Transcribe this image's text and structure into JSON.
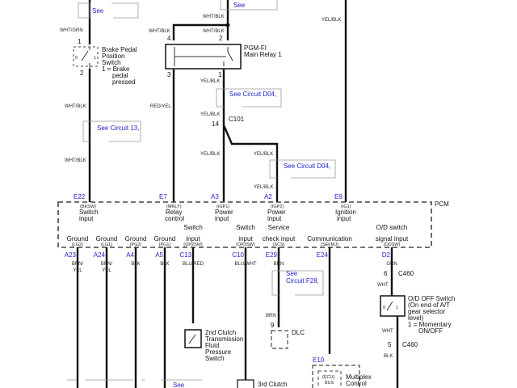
{
  "top": {
    "see1": "See",
    "see2": "See",
    "wire_wht_grn": "WHT/GRN",
    "wire_wht_blk_top": "WHT/BLK",
    "wire_wht_blk_4": "WHT/BLK",
    "wire_wht_blk_2": "WHT/BLK",
    "wire_yel_blk_e9": "YEL/BLK"
  },
  "brake_switch": {
    "pin1": "1",
    "pin2": "2",
    "pos0": "0",
    "pos1": "1",
    "name": [
      "Brake Pedal",
      "Position",
      "Switch",
      "1 = Brake",
      "pedal",
      "pressed"
    ]
  },
  "relay": {
    "pin4": "4",
    "pin2": "2",
    "pin3": "3",
    "pin1": "1",
    "name": [
      "PGM-FI",
      "Main Relay 1"
    ]
  },
  "wires": {
    "wht_blk_a": "WHT/BLK",
    "wht_blk_b": "WHT/BLK",
    "red_yel": "RED/YEL",
    "yel_blk_a": "YEL/BLK",
    "yel_blk_b": "YEL/BLK",
    "yel_blk_c": "YEL/BLK",
    "yel_blk_d": "YEL/BLK",
    "yel_blk_e": "YEL/BLK"
  },
  "refs": {
    "d04_a": "See Circuit D04,",
    "circuit13": "See Circuit 13,",
    "d04_b": "See Circuit D04,",
    "f28": [
      "See",
      "Circuit F28,"
    ],
    "see_bottom": "See"
  },
  "c101": {
    "name": "C101",
    "pin": "14"
  },
  "pcm": {
    "label": "PCM",
    "top_pins": [
      {
        "pin": "E22",
        "code": "(BKSW)",
        "l1": "Switch",
        "l2": "input"
      },
      {
        "pin": "E7",
        "code": "(MRLY)",
        "l1": "Relay",
        "l2": "control"
      },
      {
        "pin": "A3",
        "code": "(IGP1)",
        "l1": "Power",
        "l2": "input"
      },
      {
        "pin": "A2",
        "code": "(IGP2)",
        "l1": "Power",
        "l2": "input"
      },
      {
        "pin": "E9",
        "code": "(IG1)",
        "l1": "Ignition",
        "l2": "input"
      }
    ],
    "bottom_pins": [
      {
        "pin": "A23",
        "l1": "",
        "l2": "Ground",
        "code": "(LG2)",
        "wire": [
          "BRN/",
          "YEL"
        ]
      },
      {
        "pin": "A24",
        "l1": "",
        "l2": "Ground",
        "code": "(LG1)",
        "wire": [
          "BRN/",
          "YEL"
        ]
      },
      {
        "pin": "A4",
        "l1": "",
        "l2": "Ground",
        "code": "(PG2)",
        "wire": [
          "BLK",
          ""
        ]
      },
      {
        "pin": "A5",
        "l1": "",
        "l2": "Ground",
        "code": "(PG1)",
        "wire": [
          "BLK",
          ""
        ]
      },
      {
        "pin": "C13",
        "l1": "Switch",
        "l2": "input",
        "code": "(OP2SW)",
        "wire": [
          "BLU/RED",
          ""
        ]
      },
      {
        "pin": "C10",
        "l1": "Switch",
        "l2": "input",
        "code": "(OP3SW)",
        "wire": [
          "BLU/WHT",
          ""
        ]
      },
      {
        "pin": "E29",
        "l1": "Service",
        "l2": "check input",
        "code": "(SCS)",
        "wire": [
          "BRN",
          ""
        ]
      },
      {
        "pin": "E24",
        "l1": "",
        "l2": "Communication",
        "code": "(SEFMJ)",
        "wire": [
          "",
          ""
        ]
      },
      {
        "pin": "D2",
        "l1": "O/D switch",
        "l2": "signal input",
        "code": "(ODSW)",
        "wire": [
          "GRN",
          ""
        ]
      }
    ]
  },
  "clutch2": {
    "name": [
      "2nd Clutch",
      "Transmission",
      "Fluid",
      "Pressure",
      "Switch"
    ]
  },
  "clutch3": {
    "name": "3rd Clutch"
  },
  "dlc": {
    "name": "DLC",
    "pin": "9",
    "wire": "BRN"
  },
  "c460": {
    "name": "C460",
    "pin6": "6",
    "pin5": "5",
    "wire_wht_a": "WHT",
    "wire_wht_b": "WHT",
    "wire_blk": "BLK"
  },
  "od_switch": {
    "pos0": "0",
    "pos1": "1",
    "name": [
      "O/D OFF Switch",
      "(On end of A/T",
      "gear selector",
      "level)",
      "1 = Momentary",
      "ON/OFF"
    ]
  },
  "multiplex": {
    "pin": "E10",
    "ecu": [
      "(ECU)",
      "BUS"
    ],
    "name": [
      "Multiplex",
      "Control"
    ]
  }
}
